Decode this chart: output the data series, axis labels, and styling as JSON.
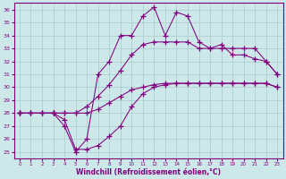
{
  "xlabel": "Windchill (Refroidissement éolien,°C)",
  "bg_color": "#cce8e8",
  "line_color": "#800080",
  "grid_color": "#aacccc",
  "xlim": [
    -0.5,
    23.5
  ],
  "ylim": [
    24.5,
    36.5
  ],
  "xticks": [
    0,
    1,
    2,
    3,
    4,
    5,
    6,
    7,
    8,
    9,
    10,
    11,
    12,
    13,
    14,
    15,
    16,
    17,
    18,
    19,
    20,
    21,
    22,
    23
  ],
  "yticks": [
    25,
    26,
    27,
    28,
    29,
    30,
    31,
    32,
    33,
    34,
    35,
    36
  ],
  "line1_x": [
    0,
    1,
    2,
    3,
    4,
    5,
    6,
    7,
    8,
    9,
    10,
    11,
    12,
    13,
    14,
    15,
    16,
    17,
    18,
    19,
    20,
    21,
    22,
    23
  ],
  "line1_y": [
    28.0,
    28.0,
    28.0,
    28.0,
    27.5,
    25.2,
    25.2,
    25.5,
    26.2,
    27.0,
    28.5,
    29.5,
    30.0,
    30.2,
    30.3,
    30.3,
    30.3,
    30.3,
    30.3,
    30.3,
    30.3,
    30.3,
    30.3,
    30.0
  ],
  "line2_x": [
    0,
    1,
    2,
    3,
    4,
    5,
    6,
    7,
    8,
    9,
    10,
    11,
    12,
    13,
    14,
    15,
    16,
    17,
    18,
    19,
    20,
    21,
    22,
    23
  ],
  "line2_y": [
    28.0,
    28.0,
    28.0,
    28.0,
    28.0,
    28.0,
    28.5,
    29.3,
    30.2,
    31.3,
    32.5,
    33.3,
    33.5,
    33.5,
    33.5,
    33.5,
    33.0,
    33.0,
    33.0,
    33.0,
    33.0,
    33.0,
    32.0,
    31.0
  ],
  "line3_x": [
    0,
    3,
    4,
    5,
    6,
    7,
    8,
    9,
    10,
    11,
    12,
    13,
    14,
    15,
    16,
    17,
    18,
    19,
    20,
    21,
    22,
    23
  ],
  "line3_y": [
    28.0,
    28.0,
    27.0,
    25.0,
    26.0,
    31.0,
    32.0,
    34.0,
    34.0,
    35.5,
    36.2,
    34.0,
    35.8,
    35.5,
    33.5,
    33.0,
    33.3,
    32.5,
    32.5,
    32.2,
    32.0,
    31.0
  ],
  "line4_x": [
    0,
    1,
    2,
    3,
    4,
    5,
    6,
    7,
    8,
    9,
    10,
    11,
    12,
    13,
    14,
    15,
    16,
    17,
    18,
    19,
    20,
    21,
    22,
    23
  ],
  "line4_y": [
    28.0,
    28.0,
    28.0,
    28.0,
    28.0,
    28.0,
    28.0,
    28.3,
    28.8,
    29.3,
    29.8,
    30.0,
    30.2,
    30.3,
    30.3,
    30.3,
    30.3,
    30.3,
    30.3,
    30.3,
    30.3,
    30.3,
    30.3,
    30.0
  ]
}
